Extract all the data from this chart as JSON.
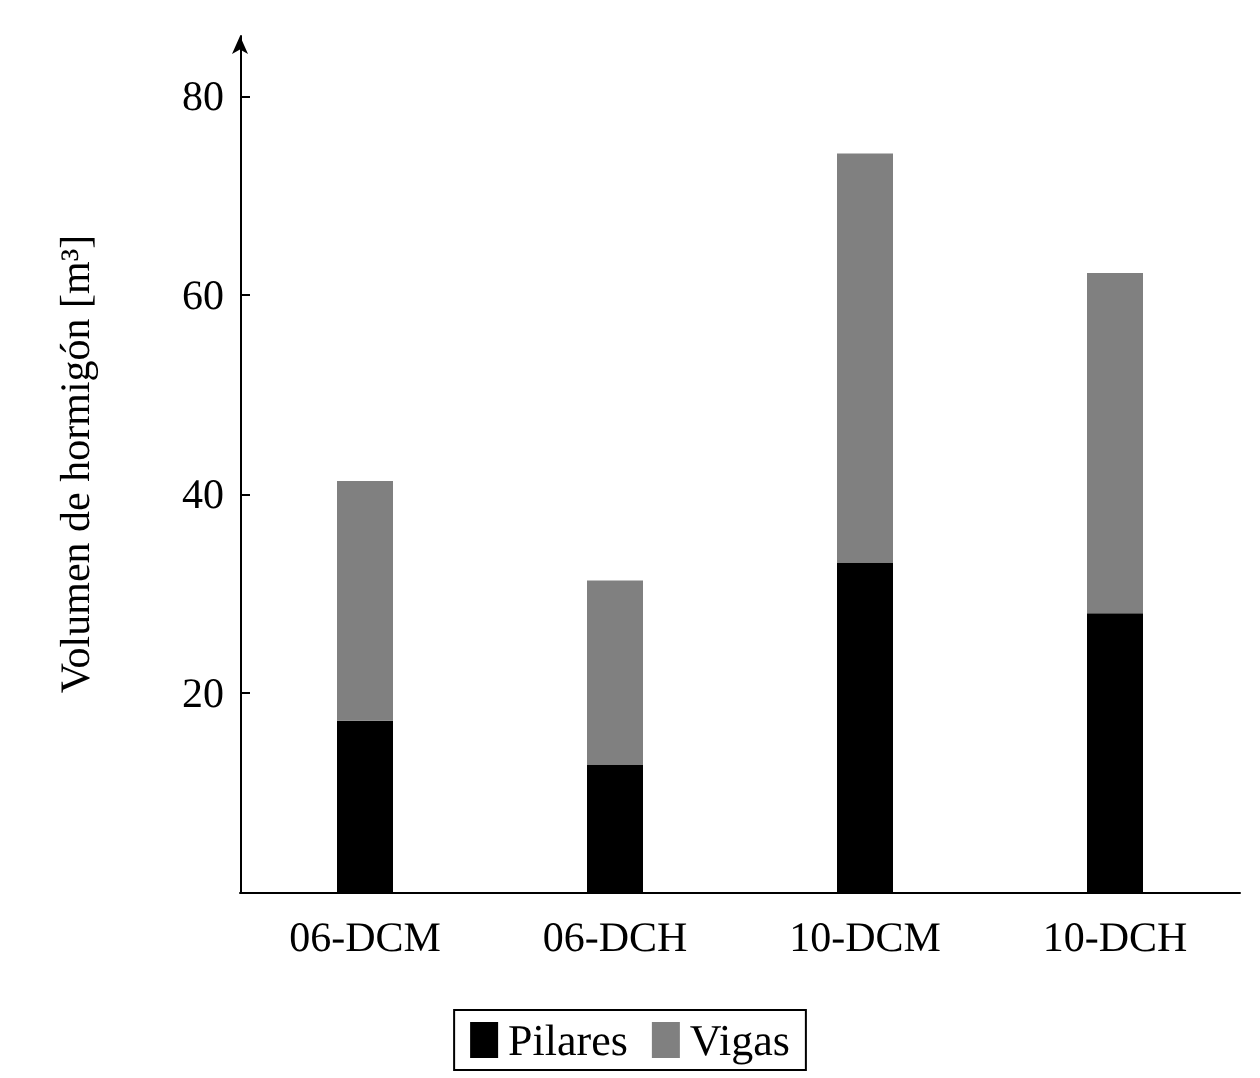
{
  "chart_data": {
    "type": "bar",
    "ylabel": "Volumen de hormigón [m³]",
    "categories": [
      "06-DCM",
      "06-DCH",
      "10-DCM",
      "10-DCH"
    ],
    "series": [
      {
        "name": "Pilares",
        "color": "#000000",
        "values": [
          17.2,
          12.8,
          33.1,
          28.0
        ]
      },
      {
        "name": "Vigas",
        "color": "#808080",
        "values": [
          24.1,
          18.5,
          41.1,
          34.2
        ]
      }
    ],
    "stacked": true,
    "ylim": [
      0,
      86
    ],
    "yticks": [
      20,
      40,
      60,
      80
    ],
    "grid": false,
    "legend": "bottom"
  }
}
